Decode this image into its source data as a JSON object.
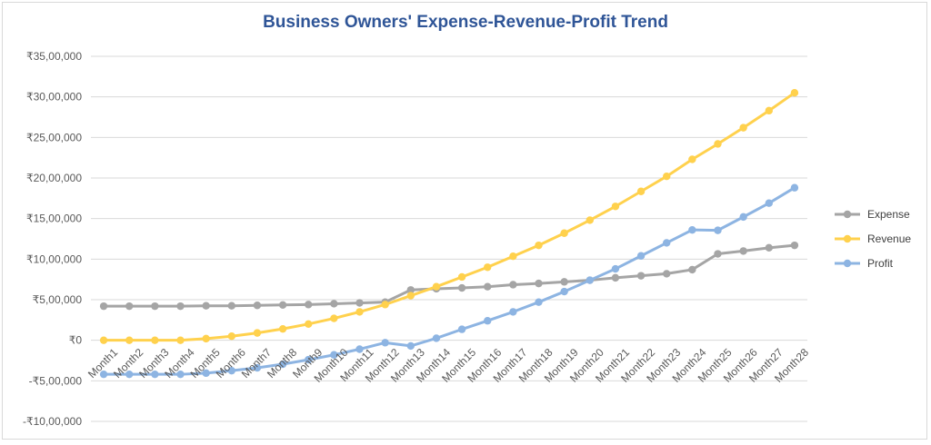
{
  "chart_data": {
    "type": "line",
    "title": "Business Owners' Expense-Revenue-Profit Trend",
    "categories": [
      "Month1",
      "Month2",
      "Month3",
      "Month4",
      "Month5",
      "Month6",
      "Month7",
      "Month8",
      "Month9",
      "Month10",
      "Month11",
      "Month12",
      "Month13",
      "Month14",
      "Month15",
      "Month16",
      "Month17",
      "Month18",
      "Month19",
      "Month20",
      "Month21",
      "Month22",
      "Month23",
      "Month24",
      "Month25",
      "Month26",
      "Month27",
      "Month28"
    ],
    "y_ticks": [
      {
        "value": -1000000,
        "label": "-₹10,00,000"
      },
      {
        "value": -500000,
        "label": "-₹5,00,000"
      },
      {
        "value": 0,
        "label": "₹0"
      },
      {
        "value": 500000,
        "label": "₹5,00,000"
      },
      {
        "value": 1000000,
        "label": "₹10,00,000"
      },
      {
        "value": 1500000,
        "label": "₹15,00,000"
      },
      {
        "value": 2000000,
        "label": "₹20,00,000"
      },
      {
        "value": 2500000,
        "label": "₹25,00,000"
      },
      {
        "value": 3000000,
        "label": "₹30,00,000"
      },
      {
        "value": 3500000,
        "label": "₹35,00,000"
      }
    ],
    "ylim": [
      -1000000,
      3500000
    ],
    "grid": true,
    "legend_position": "right",
    "series": [
      {
        "name": "Expense",
        "color": "#a5a5a5",
        "values": [
          420000,
          420000,
          420000,
          420000,
          425000,
          425000,
          430000,
          435000,
          440000,
          450000,
          460000,
          470000,
          620000,
          635000,
          645000,
          660000,
          685000,
          700000,
          720000,
          740000,
          770000,
          795000,
          820000,
          870000,
          1065000,
          1100000,
          1140000,
          1170000
        ]
      },
      {
        "name": "Revenue",
        "color": "#ffd14d",
        "values": [
          0,
          0,
          0,
          0,
          20000,
          50000,
          90000,
          140000,
          200000,
          270000,
          350000,
          440000,
          550000,
          660000,
          780000,
          900000,
          1035000,
          1170000,
          1320000,
          1480000,
          1650000,
          1835000,
          2020000,
          2230000,
          2420000,
          2620000,
          2830000,
          3050000
        ]
      },
      {
        "name": "Profit",
        "color": "#8db4e2",
        "values": [
          -420000,
          -420000,
          -420000,
          -420000,
          -405000,
          -375000,
          -340000,
          -295000,
          -240000,
          -180000,
          -110000,
          -30000,
          -70000,
          25000,
          135000,
          240000,
          350000,
          470000,
          600000,
          740000,
          880000,
          1040000,
          1200000,
          1360000,
          1355000,
          1520000,
          1690000,
          1880000
        ]
      }
    ]
  }
}
